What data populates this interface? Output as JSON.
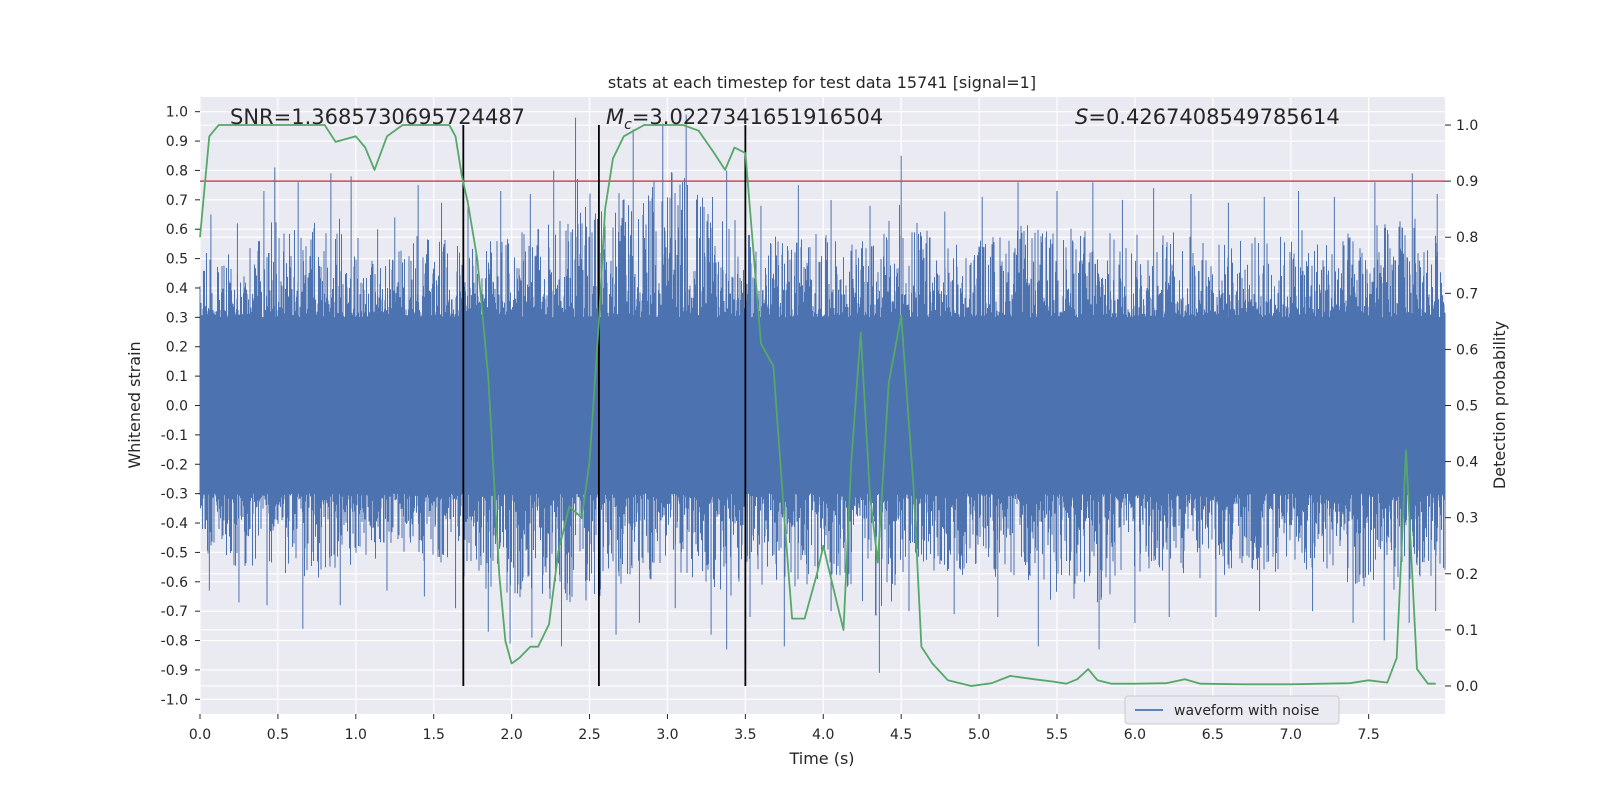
{
  "chart_data": {
    "type": "line",
    "title": "stats at each timestep for test data 15741 [signal=1]",
    "xlabel": "Time (s)",
    "ylabel": "Whitened strain",
    "ylabel_right": "Detection probability",
    "xlim": [
      0.0,
      7.99
    ],
    "ylim": [
      -1.05,
      1.05
    ],
    "ylim_right": [
      -0.05,
      1.05
    ],
    "x_ticks": [
      "0.0",
      "0.5",
      "1.0",
      "1.5",
      "2.0",
      "2.5",
      "3.0",
      "3.5",
      "4.0",
      "4.5",
      "5.0",
      "5.5",
      "6.0",
      "6.5",
      "7.0",
      "7.5"
    ],
    "y_ticks": [
      "1.0",
      "0.9",
      "0.8",
      "0.7",
      "0.6",
      "0.5",
      "0.4",
      "0.3",
      "0.2",
      "0.1",
      "0.0",
      "-0.1",
      "-0.2",
      "-0.3",
      "-0.4",
      "-0.5",
      "-0.6",
      "-0.7",
      "-0.8",
      "-0.9",
      "-1.0"
    ],
    "y_ticks_right": [
      "1.0",
      "0.9",
      "0.8",
      "0.7",
      "0.6",
      "0.5",
      "0.4",
      "0.3",
      "0.2",
      "0.1",
      "0.0"
    ],
    "grid": true,
    "legend": {
      "placement": "lower-right",
      "entries": [
        "waveform with noise"
      ]
    },
    "annotations": {
      "snr": "SNR=1.3685730695724487",
      "mc_symbol": "M",
      "mc_subscript": "c",
      "mc_value": "=3.0227341651916504",
      "s_symbol": "S",
      "s_value": "=0.4267408549785614"
    },
    "threshold": 0.9,
    "vertical_lines": [
      1.69,
      2.56,
      3.5
    ],
    "waveform": {
      "name": "waveform with noise",
      "color": "#4c72b0",
      "band_top": 0.3,
      "band_bottom": -0.3,
      "peaks": [
        [
          0.07,
          0.65
        ],
        [
          0.24,
          0.62
        ],
        [
          0.41,
          0.73
        ],
        [
          0.48,
          0.81
        ],
        [
          0.63,
          0.76
        ],
        [
          0.84,
          0.79
        ],
        [
          0.97,
          0.78
        ],
        [
          1.14,
          0.6
        ],
        [
          1.25,
          0.64
        ],
        [
          1.4,
          0.75
        ],
        [
          1.55,
          0.69
        ],
        [
          1.72,
          0.7
        ],
        [
          1.93,
          0.73
        ],
        [
          2.12,
          0.72
        ],
        [
          2.27,
          0.8
        ],
        [
          2.41,
          0.98
        ],
        [
          2.56,
          0.82
        ],
        [
          2.78,
          0.94
        ],
        [
          2.97,
          0.96
        ],
        [
          3.12,
          0.99
        ],
        [
          3.38,
          0.8
        ],
        [
          3.6,
          0.68
        ],
        [
          3.84,
          0.75
        ],
        [
          4.05,
          0.7
        ],
        [
          4.3,
          0.68
        ],
        [
          4.5,
          0.85
        ],
        [
          4.78,
          0.66
        ],
        [
          5.02,
          0.71
        ],
        [
          5.25,
          0.76
        ],
        [
          5.5,
          0.73
        ],
        [
          5.73,
          0.76
        ],
        [
          5.92,
          0.7
        ],
        [
          6.12,
          0.74
        ],
        [
          6.36,
          0.72
        ],
        [
          6.6,
          0.69
        ],
        [
          6.83,
          0.71
        ],
        [
          7.05,
          0.73
        ],
        [
          7.28,
          0.71
        ],
        [
          7.54,
          0.76
        ],
        [
          7.78,
          0.79
        ],
        [
          7.94,
          0.72
        ]
      ],
      "troughs": [
        [
          0.06,
          -0.63
        ],
        [
          0.25,
          -0.67
        ],
        [
          0.43,
          -0.68
        ],
        [
          0.66,
          -0.76
        ],
        [
          0.9,
          -0.68
        ],
        [
          1.2,
          -0.63
        ],
        [
          1.44,
          -0.65
        ],
        [
          1.64,
          -0.69
        ],
        [
          1.85,
          -0.77
        ],
        [
          1.99,
          -0.81
        ],
        [
          2.13,
          -0.79
        ],
        [
          2.32,
          -0.82
        ],
        [
          2.56,
          -0.81
        ],
        [
          2.67,
          -0.78
        ],
        [
          2.82,
          -0.74
        ],
        [
          3.05,
          -0.69
        ],
        [
          3.28,
          -0.78
        ],
        [
          3.38,
          -0.83
        ],
        [
          3.53,
          -0.72
        ],
        [
          3.75,
          -0.82
        ],
        [
          4.05,
          -0.7
        ],
        [
          4.36,
          -0.91
        ],
        [
          4.55,
          -0.7
        ],
        [
          4.84,
          -0.71
        ],
        [
          5.12,
          -0.72
        ],
        [
          5.38,
          -0.82
        ],
        [
          5.77,
          -0.83
        ],
        [
          6.0,
          -0.74
        ],
        [
          6.22,
          -0.72
        ],
        [
          6.52,
          -0.72
        ],
        [
          6.8,
          -0.7
        ],
        [
          7.14,
          -0.7
        ],
        [
          7.4,
          -0.74
        ],
        [
          7.6,
          -0.8
        ],
        [
          7.76,
          -0.74
        ],
        [
          7.93,
          -0.7
        ]
      ]
    },
    "detection_probability": {
      "color": "#55a868",
      "points": [
        [
          0.0,
          0.8
        ],
        [
          0.06,
          0.98
        ],
        [
          0.12,
          1.0
        ],
        [
          0.5,
          1.0
        ],
        [
          0.8,
          1.0
        ],
        [
          0.87,
          0.97
        ],
        [
          1.0,
          0.98
        ],
        [
          1.06,
          0.96
        ],
        [
          1.12,
          0.92
        ],
        [
          1.2,
          0.98
        ],
        [
          1.3,
          1.0
        ],
        [
          1.6,
          1.0
        ],
        [
          1.64,
          0.98
        ],
        [
          1.68,
          0.91
        ],
        [
          1.72,
          0.86
        ],
        [
          1.78,
          0.76
        ],
        [
          1.85,
          0.55
        ],
        [
          1.92,
          0.2
        ],
        [
          1.96,
          0.08
        ],
        [
          2.0,
          0.04
        ],
        [
          2.05,
          0.05
        ],
        [
          2.12,
          0.07
        ],
        [
          2.17,
          0.07
        ],
        [
          2.24,
          0.11
        ],
        [
          2.3,
          0.24
        ],
        [
          2.37,
          0.32
        ],
        [
          2.45,
          0.3
        ],
        [
          2.5,
          0.4
        ],
        [
          2.56,
          0.65
        ],
        [
          2.6,
          0.85
        ],
        [
          2.65,
          0.94
        ],
        [
          2.72,
          0.98
        ],
        [
          2.85,
          1.0
        ],
        [
          3.1,
          1.0
        ],
        [
          3.2,
          0.99
        ],
        [
          3.3,
          0.95
        ],
        [
          3.37,
          0.92
        ],
        [
          3.43,
          0.96
        ],
        [
          3.5,
          0.95
        ],
        [
          3.6,
          0.61
        ],
        [
          3.68,
          0.57
        ],
        [
          3.75,
          0.3
        ],
        [
          3.8,
          0.12
        ],
        [
          3.88,
          0.12
        ],
        [
          3.96,
          0.2
        ],
        [
          4.0,
          0.25
        ],
        [
          4.06,
          0.18
        ],
        [
          4.13,
          0.1
        ],
        [
          4.18,
          0.4
        ],
        [
          4.24,
          0.63
        ],
        [
          4.3,
          0.34
        ],
        [
          4.35,
          0.22
        ],
        [
          4.42,
          0.54
        ],
        [
          4.5,
          0.66
        ],
        [
          4.58,
          0.35
        ],
        [
          4.63,
          0.07
        ],
        [
          4.7,
          0.04
        ],
        [
          4.8,
          0.01
        ],
        [
          4.95,
          0.0
        ],
        [
          5.08,
          0.005
        ],
        [
          5.2,
          0.018
        ],
        [
          5.35,
          0.012
        ],
        [
          5.47,
          0.008
        ],
        [
          5.56,
          0.004
        ],
        [
          5.63,
          0.012
        ],
        [
          5.7,
          0.03
        ],
        [
          5.76,
          0.01
        ],
        [
          5.85,
          0.004
        ],
        [
          6.0,
          0.004
        ],
        [
          6.2,
          0.005
        ],
        [
          6.32,
          0.012
        ],
        [
          6.42,
          0.004
        ],
        [
          6.7,
          0.003
        ],
        [
          7.0,
          0.003
        ],
        [
          7.2,
          0.004
        ],
        [
          7.38,
          0.005
        ],
        [
          7.5,
          0.01
        ],
        [
          7.62,
          0.006
        ],
        [
          7.68,
          0.05
        ],
        [
          7.74,
          0.42
        ],
        [
          7.81,
          0.03
        ],
        [
          7.88,
          0.004
        ],
        [
          7.93,
          0.004
        ]
      ]
    }
  }
}
